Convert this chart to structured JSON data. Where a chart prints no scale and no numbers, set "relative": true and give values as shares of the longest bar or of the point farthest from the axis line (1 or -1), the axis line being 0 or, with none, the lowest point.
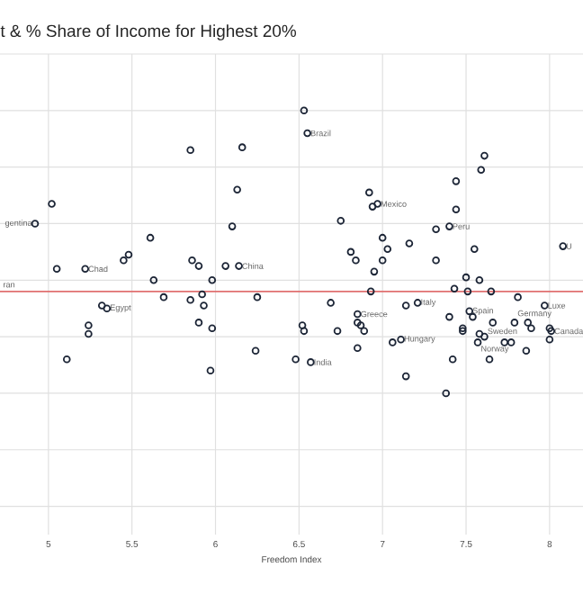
{
  "chart_data": {
    "type": "scatter",
    "title": "t & % Share of Income for Highest 20%",
    "xlabel": "Freedom Index",
    "relative": true,
    "marker": "circle",
    "color": "#1c2536",
    "grid": true,
    "tick_labels": "x",
    "xlim": [
      4.71,
      8.2
    ],
    "xticks": [
      5,
      5.5,
      6,
      6.5,
      7,
      7.5,
      8
    ],
    "x": [
      6.53,
      6.55,
      5.85,
      6.16,
      7.61,
      7.59,
      7.44,
      5.02,
      6.13,
      6.92,
      6.94,
      6.97,
      7.44,
      4.92,
      6.1,
      5.61,
      5.48,
      5.45,
      5.86,
      5.9,
      5.05,
      5.22,
      6.06,
      6.14,
      5.63,
      5.98,
      5.92,
      6.25,
      5.69,
      5.85,
      5.93,
      5.32,
      5.35,
      5.9,
      5.98,
      5.24,
      5.24,
      6.52,
      6.53,
      6.24,
      6.48,
      5.11,
      5.97,
      6.75,
      7.4,
      7.32,
      7.0,
      7.03,
      7.16,
      6.81,
      6.84,
      7.0,
      7.32,
      7.55,
      8.08,
      6.95,
      7.5,
      7.58,
      7.43,
      7.51,
      7.65,
      6.93,
      7.81,
      6.69,
      7.14,
      7.21,
      7.97,
      6.85,
      7.4,
      7.52,
      7.54,
      7.66,
      7.79,
      7.87,
      6.85,
      6.87,
      6.89,
      6.73,
      7.48,
      7.48,
      7.58,
      7.61,
      7.89,
      8.0,
      8.01,
      7.57,
      7.73,
      7.77,
      7.86,
      7.06,
      7.11,
      8.0,
      6.85,
      6.57,
      7.42,
      7.64,
      7.14,
      7.38
    ],
    "values": [
      1.0,
      0.92,
      0.86,
      0.87,
      0.84,
      0.79,
      0.75,
      0.67,
      0.72,
      0.71,
      0.66,
      0.67,
      0.65,
      0.6,
      0.59,
      0.55,
      0.49,
      0.47,
      0.47,
      0.45,
      0.44,
      0.44,
      0.45,
      0.45,
      0.4,
      0.4,
      0.35,
      0.34,
      0.34,
      0.33,
      0.31,
      0.31,
      0.3,
      0.25,
      0.23,
      0.24,
      0.21,
      0.24,
      0.22,
      0.15,
      0.12,
      0.12,
      0.08,
      0.61,
      0.59,
      0.58,
      0.55,
      0.51,
      0.53,
      0.5,
      0.47,
      0.47,
      0.47,
      0.51,
      0.52,
      0.43,
      0.41,
      0.4,
      0.37,
      0.36,
      0.36,
      0.36,
      0.34,
      0.32,
      0.31,
      0.32,
      0.31,
      0.28,
      0.27,
      0.29,
      0.27,
      0.25,
      0.25,
      0.25,
      0.25,
      0.24,
      0.22,
      0.22,
      0.23,
      0.22,
      0.21,
      0.2,
      0.23,
      0.23,
      0.22,
      0.18,
      0.18,
      0.18,
      0.15,
      0.18,
      0.19,
      0.19,
      0.16,
      0.11,
      0.12,
      0.12,
      0.06,
      0.0
    ],
    "ref_lines": [
      {
        "axis": "y",
        "value": 0.36,
        "color": "#e07070"
      }
    ],
    "annotations": [
      {
        "text": "Brazil",
        "x": 6.55,
        "y": 0.92
      },
      {
        "text": "Mexico",
        "x": 6.97,
        "y": 0.67
      },
      {
        "text": "Peru",
        "x": 7.4,
        "y": 0.59
      },
      {
        "text": "gentina",
        "x": 4.92,
        "y": 0.6
      },
      "ran",
      {
        "text": "Chad",
        "x": 5.22,
        "y": 0.44
      },
      {
        "text": "China",
        "x": 6.14,
        "y": 0.45
      },
      {
        "text": "Egypt",
        "x": 5.35,
        "y": 0.3
      },
      {
        "text": "India",
        "x": 6.57,
        "y": 0.11
      },
      {
        "text": "Greece",
        "x": 6.85,
        "y": 0.28
      },
      {
        "text": "Italy",
        "x": 7.21,
        "y": 0.32
      },
      {
        "text": "Hungary",
        "x": 7.11,
        "y": 0.19
      },
      {
        "text": "Spain",
        "x": 7.52,
        "y": 0.29
      },
      {
        "text": "Luxe",
        "x": 7.97,
        "y": 0.31
      },
      {
        "text": "Germany",
        "x": 7.79,
        "y": 0.28
      },
      {
        "text": "Sweden",
        "x": 7.61,
        "y": 0.22
      },
      {
        "text": "Norway",
        "x": 7.57,
        "y": 0.155
      },
      {
        "text": "Canada",
        "x": 8.01,
        "y": 0.22
      },
      {
        "text": "U",
        "x": 8.08,
        "y": 0.52
      }
    ]
  }
}
